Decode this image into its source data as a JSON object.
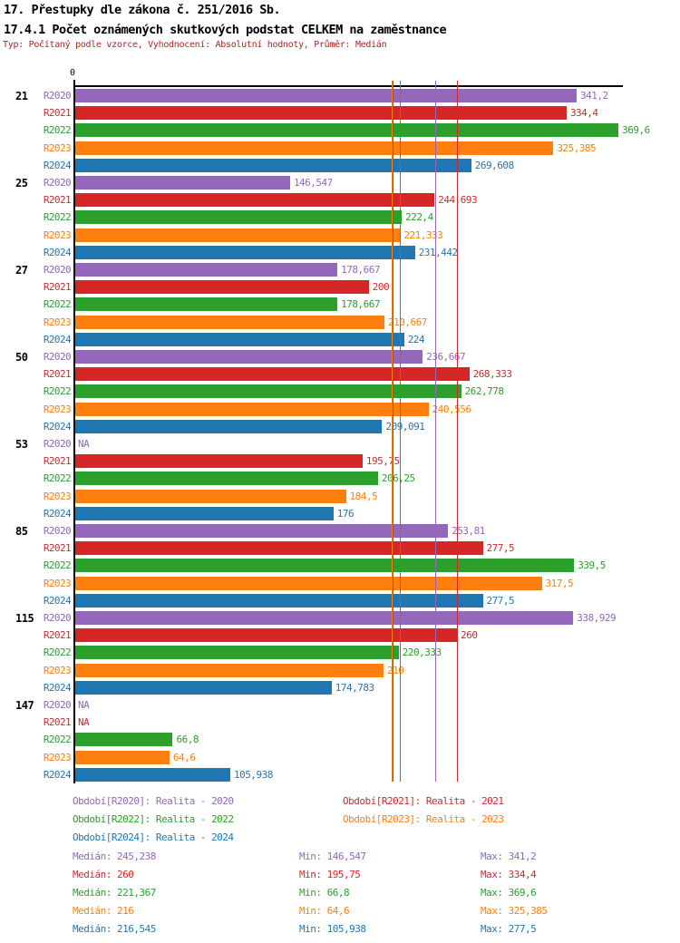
{
  "header": {
    "title1": "17. Přestupky dle zákona č. 251/2016 Sb.",
    "title2": "17.4.1 Počet oznámených skutkových podstat CELKEM na zaměstnance",
    "meta": "Typ: Počítaný podle vzorce, Vyhodnocení: Absolutní hodnoty, Průměr: Medián"
  },
  "axis": {
    "zero_label": "0"
  },
  "colors": {
    "R2020": "#9467bd",
    "R2021": "#d62728",
    "R2022": "#2ca02c",
    "R2023": "#ff7f0e",
    "R2024": "#1f77b4"
  },
  "chart_data": {
    "type": "bar",
    "orientation": "horizontal",
    "title": "17.4.1 Počet oznámených skutkových podstat CELKEM na zaměstnance",
    "series": [
      "R2020",
      "R2021",
      "R2022",
      "R2023",
      "R2024"
    ],
    "axis_min": 0,
    "axis_max": 372,
    "grid": false,
    "value_label_decimal_separator": ",",
    "groups": [
      {
        "category": "21",
        "values": [
          341.2,
          334.4,
          369.6,
          325.385,
          269.608
        ],
        "labels": [
          "341,2",
          "334,4",
          "369,6",
          "325,385",
          "269,608"
        ]
      },
      {
        "category": "25",
        "values": [
          146.547,
          244.693,
          222.4,
          221.333,
          231.442
        ],
        "labels": [
          "146,547",
          "244,693",
          "222,4",
          "221,333",
          "231,442"
        ]
      },
      {
        "category": "27",
        "values": [
          178.667,
          200,
          178.667,
          210.667,
          224
        ],
        "labels": [
          "178,667",
          "200",
          "178,667",
          "210,667",
          "224"
        ]
      },
      {
        "category": "50",
        "values": [
          236.667,
          268.333,
          262.778,
          240.556,
          209.091
        ],
        "labels": [
          "236,667",
          "268,333",
          "262,778",
          "240,556",
          "209,091"
        ]
      },
      {
        "category": "53",
        "values": [
          null,
          195.75,
          206.25,
          184.5,
          176
        ],
        "labels": [
          "NA",
          "195,75",
          "206,25",
          "184,5",
          "176"
        ]
      },
      {
        "category": "85",
        "values": [
          253.81,
          277.5,
          339.5,
          317.5,
          277.5
        ],
        "labels": [
          "253,81",
          "277,5",
          "339,5",
          "317,5",
          "277,5"
        ]
      },
      {
        "category": "115",
        "values": [
          338.929,
          260,
          220.333,
          210,
          174.783
        ],
        "labels": [
          "338,929",
          "260",
          "220,333",
          "210",
          "174,783"
        ]
      },
      {
        "category": "147",
        "values": [
          null,
          null,
          66.8,
          64.6,
          105.938
        ],
        "labels": [
          "NA",
          "NA",
          "66,8",
          "64,6",
          "105,938"
        ]
      }
    ],
    "median_lines": {
      "R2020": 245.238,
      "R2021": 260,
      "R2022": 221.367,
      "R2023": 216,
      "R2024": 216.545
    }
  },
  "legend": [
    {
      "series": "R2020",
      "label": "Období[R2020]: Realita - 2020"
    },
    {
      "series": "R2021",
      "label": "Období[R2021]: Realita - 2021"
    },
    {
      "series": "R2022",
      "label": "Období[R2022]: Realita - 2022"
    },
    {
      "series": "R2023",
      "label": "Období[R2023]: Realita - 2023"
    },
    {
      "series": "R2024",
      "label": "Období[R2024]: Realita - 2024"
    }
  ],
  "stats": [
    {
      "series": "R2020",
      "median": "Medián: 245,238",
      "min": "Min: 146,547",
      "max": "Max: 341,2"
    },
    {
      "series": "R2021",
      "median": "Medián: 260",
      "min": "Min: 195,75",
      "max": "Max: 334,4"
    },
    {
      "series": "R2022",
      "median": "Medián: 221,367",
      "min": "Min: 66,8",
      "max": "Max: 369,6"
    },
    {
      "series": "R2023",
      "median": "Medián: 216",
      "min": "Min: 64,6",
      "max": "Max: 325,385"
    },
    {
      "series": "R2024",
      "median": "Medián: 216,545",
      "min": "Min: 105,938",
      "max": "Max: 277,5"
    }
  ]
}
